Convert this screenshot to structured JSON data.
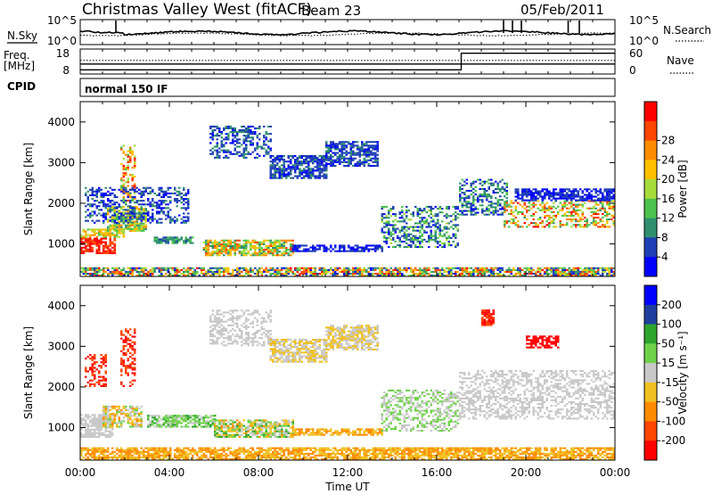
{
  "header": {
    "title": "Christmas Valley West (fitACF)",
    "beam": "Beam 23",
    "date": "05/Feb/2011"
  },
  "noise_panel": {
    "left_label": "N.Sky",
    "right_label": "N.Search",
    "left_ticks": [
      "10^5",
      "10^0"
    ],
    "right_ticks": [
      "10^5",
      "10^0"
    ]
  },
  "freq_panel": {
    "left_label_1": "Freq.",
    "left_label_2": "[MHz]",
    "right_label": "Nave",
    "left_ticks": [
      "18",
      "8"
    ],
    "right_ticks": [
      "60",
      "0"
    ],
    "freq_value": 12,
    "nave_before": 10,
    "nave_after": 50,
    "nave_switch_hour": 17.1
  },
  "cpid": {
    "label": "CPID",
    "mode": "normal 150 IF"
  },
  "colors": {
    "power": [
      "#0000ff",
      "#1f3fb5",
      "#2f8f6f",
      "#4dc24d",
      "#a6dc3a",
      "#ffc000",
      "#ff8c00",
      "#ff4500",
      "#ff0000"
    ],
    "velocity": [
      "#ff0000",
      "#ff4500",
      "#ff8c00",
      "#f0c020",
      "#c8c8c8",
      "#6fd24a",
      "#2ea62e",
      "#1f3f9f",
      "#0000ff"
    ],
    "velocity_ground": "#c8c8c8"
  },
  "chart_data": [
    {
      "type": "heatmap",
      "name": "power",
      "ylabel": "Slant Range [km]",
      "ylim": [
        200,
        4500
      ],
      "y_ticks": [
        1000,
        2000,
        3000,
        4000
      ],
      "xlim": [
        0,
        24
      ],
      "colorbar": {
        "label": "Power [dB]",
        "ticks": [
          "4",
          "8",
          "12",
          "16",
          "20",
          "24",
          "28"
        ],
        "range": [
          0,
          32
        ]
      },
      "regions": [
        {
          "h0": 0.0,
          "h1": 1.6,
          "r0": 750,
          "r1": 1150,
          "lvl": [
            7,
            8
          ]
        },
        {
          "h0": 0.0,
          "h1": 2.0,
          "r0": 1150,
          "r1": 1350,
          "lvl": [
            3,
            6
          ]
        },
        {
          "h0": 1.2,
          "h1": 3.0,
          "r0": 1300,
          "r1": 1900,
          "lvl": [
            2,
            6
          ]
        },
        {
          "h0": 1.8,
          "h1": 2.5,
          "r0": 2000,
          "r1": 3400,
          "lvl": [
            3,
            8
          ]
        },
        {
          "h0": 0.2,
          "h1": 4.8,
          "r0": 1500,
          "r1": 2400,
          "lvl": [
            0,
            2
          ]
        },
        {
          "h0": 3.3,
          "h1": 5.0,
          "r0": 1000,
          "r1": 1150,
          "lvl": [
            1,
            3
          ]
        },
        {
          "h0": 5.5,
          "h1": 9.5,
          "r0": 700,
          "r1": 1100,
          "lvl": [
            2,
            7
          ]
        },
        {
          "h0": 9.5,
          "h1": 13.5,
          "r0": 800,
          "r1": 950,
          "lvl": [
            0,
            1
          ]
        },
        {
          "h0": 5.8,
          "h1": 8.5,
          "r0": 3100,
          "r1": 3900,
          "lvl": [
            0,
            2
          ]
        },
        {
          "h0": 8.5,
          "h1": 11.0,
          "r0": 2600,
          "r1": 3150,
          "lvl": [
            0,
            2
          ]
        },
        {
          "h0": 11.0,
          "h1": 13.3,
          "r0": 2900,
          "r1": 3500,
          "lvl": [
            0,
            2
          ]
        },
        {
          "h0": 13.5,
          "h1": 17.0,
          "r0": 900,
          "r1": 1900,
          "lvl": [
            0,
            4
          ]
        },
        {
          "h0": 17.0,
          "h1": 19.2,
          "r0": 1700,
          "r1": 2600,
          "lvl": [
            0,
            3
          ]
        },
        {
          "h0": 19.0,
          "h1": 24.0,
          "r0": 1400,
          "r1": 2050,
          "lvl": [
            2,
            8
          ]
        },
        {
          "h0": 19.5,
          "h1": 24.0,
          "r0": 2050,
          "r1": 2350,
          "lvl": [
            0,
            1
          ]
        },
        {
          "h0": 0.0,
          "h1": 24.0,
          "r0": 200,
          "r1": 420,
          "lvl": [
            0,
            8
          ]
        }
      ]
    },
    {
      "type": "heatmap",
      "name": "velocity",
      "ylabel": "Slant Range [km]",
      "ylim": [
        200,
        4500
      ],
      "y_ticks": [
        1000,
        2000,
        3000,
        4000
      ],
      "xlim": [
        0,
        24
      ],
      "colorbar": {
        "label": "Velocity [m s⁻¹]",
        "ticks": [
          "200",
          "100",
          "50",
          "15",
          "-15",
          "-50",
          "-100",
          "-200"
        ],
        "range": [
          -250,
          250
        ]
      },
      "regions": [
        {
          "h0": 0.0,
          "h1": 1.5,
          "r0": 750,
          "r1": 1300,
          "lvl": [
            4,
            4
          ]
        },
        {
          "h0": 1.0,
          "h1": 2.8,
          "r0": 1000,
          "r1": 1500,
          "lvl": [
            2,
            5
          ]
        },
        {
          "h0": 1.8,
          "h1": 2.5,
          "r0": 2000,
          "r1": 3400,
          "lvl": [
            0,
            1
          ]
        },
        {
          "h0": 0.2,
          "h1": 1.2,
          "r0": 2000,
          "r1": 2800,
          "lvl": [
            0,
            1
          ]
        },
        {
          "h0": 3.0,
          "h1": 6.0,
          "r0": 1000,
          "r1": 1300,
          "lvl": [
            4,
            6
          ]
        },
        {
          "h0": 6.0,
          "h1": 9.5,
          "r0": 750,
          "r1": 1200,
          "lvl": [
            2,
            6
          ]
        },
        {
          "h0": 9.5,
          "h1": 13.5,
          "r0": 800,
          "r1": 950,
          "lvl": [
            2,
            3
          ]
        },
        {
          "h0": 5.8,
          "h1": 8.5,
          "r0": 3000,
          "r1": 3900,
          "lvl": [
            4,
            4
          ]
        },
        {
          "h0": 8.5,
          "h1": 11.0,
          "r0": 2600,
          "r1": 3150,
          "lvl": [
            3,
            4
          ]
        },
        {
          "h0": 11.0,
          "h1": 13.3,
          "r0": 2900,
          "r1": 3500,
          "lvl": [
            3,
            4
          ]
        },
        {
          "h0": 13.5,
          "h1": 17.0,
          "r0": 900,
          "r1": 1900,
          "lvl": [
            4,
            5
          ]
        },
        {
          "h0": 17.0,
          "h1": 24.0,
          "r0": 1200,
          "r1": 2400,
          "lvl": [
            4,
            4
          ]
        },
        {
          "h0": 18.0,
          "h1": 18.6,
          "r0": 3500,
          "r1": 3900,
          "lvl": [
            0,
            1
          ]
        },
        {
          "h0": 20.0,
          "h1": 21.5,
          "r0": 2950,
          "r1": 3250,
          "lvl": [
            0,
            0
          ]
        },
        {
          "h0": 0.0,
          "h1": 24.0,
          "r0": 200,
          "r1": 480,
          "lvl": [
            2,
            3
          ]
        }
      ]
    }
  ],
  "x_axis": {
    "label": "Time UT",
    "ticks": [
      "00:00",
      "04:00",
      "08:00",
      "12:00",
      "16:00",
      "20:00",
      "00:00"
    ]
  }
}
